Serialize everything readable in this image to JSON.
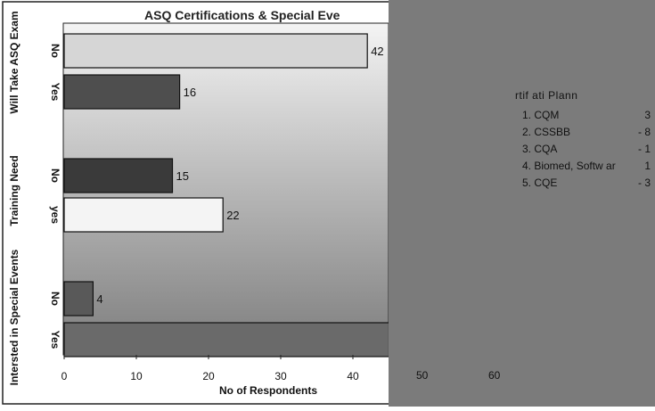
{
  "chart_data": {
    "type": "bar",
    "orientation": "horizontal",
    "title": "ASQ Certifications & Special Eve",
    "xlabel": "No of Respondents",
    "xlim": [
      0,
      60
    ],
    "xticks": [
      0,
      10,
      20,
      30,
      40,
      50,
      60
    ],
    "groups": [
      {
        "label": "Will Take ASQ Exam",
        "bars": [
          {
            "category": "No",
            "value": 42,
            "label": "42",
            "color": "#d6d6d6"
          },
          {
            "category": "Yes",
            "value": 16,
            "label": "16",
            "color": "#4e4e4e"
          }
        ]
      },
      {
        "label": "Training Need",
        "bars": [
          {
            "category": "No",
            "value": 15,
            "label": "15",
            "color": "#3a3a3a"
          },
          {
            "category": "yes",
            "value": 22,
            "label": "22",
            "color": "#f4f4f4"
          }
        ]
      },
      {
        "label": "Intersted in Special Events",
        "bars": [
          {
            "category": "No",
            "value": 4,
            "label": "4",
            "color": "#595959"
          },
          {
            "category": "Yes",
            "value": 45,
            "label": "",
            "color": "#6a6a6a"
          }
        ]
      }
    ],
    "grid": false
  },
  "legend": {
    "title": "rtif  ati   Plann",
    "items": [
      {
        "name": "1. CQM",
        "value": "3"
      },
      {
        "name": "2. CSSBB",
        "value": "- 8"
      },
      {
        "name": "3. CQA",
        "value": "- 1"
      },
      {
        "name": "4. Biomed, Softw ar",
        "value": "1"
      },
      {
        "name": "5. CQE",
        "value": "- 3"
      }
    ]
  },
  "colors": {
    "panel": "#7b7b7b",
    "plot_top": "#f2f2f2",
    "plot_bottom": "#7a7a7a"
  }
}
